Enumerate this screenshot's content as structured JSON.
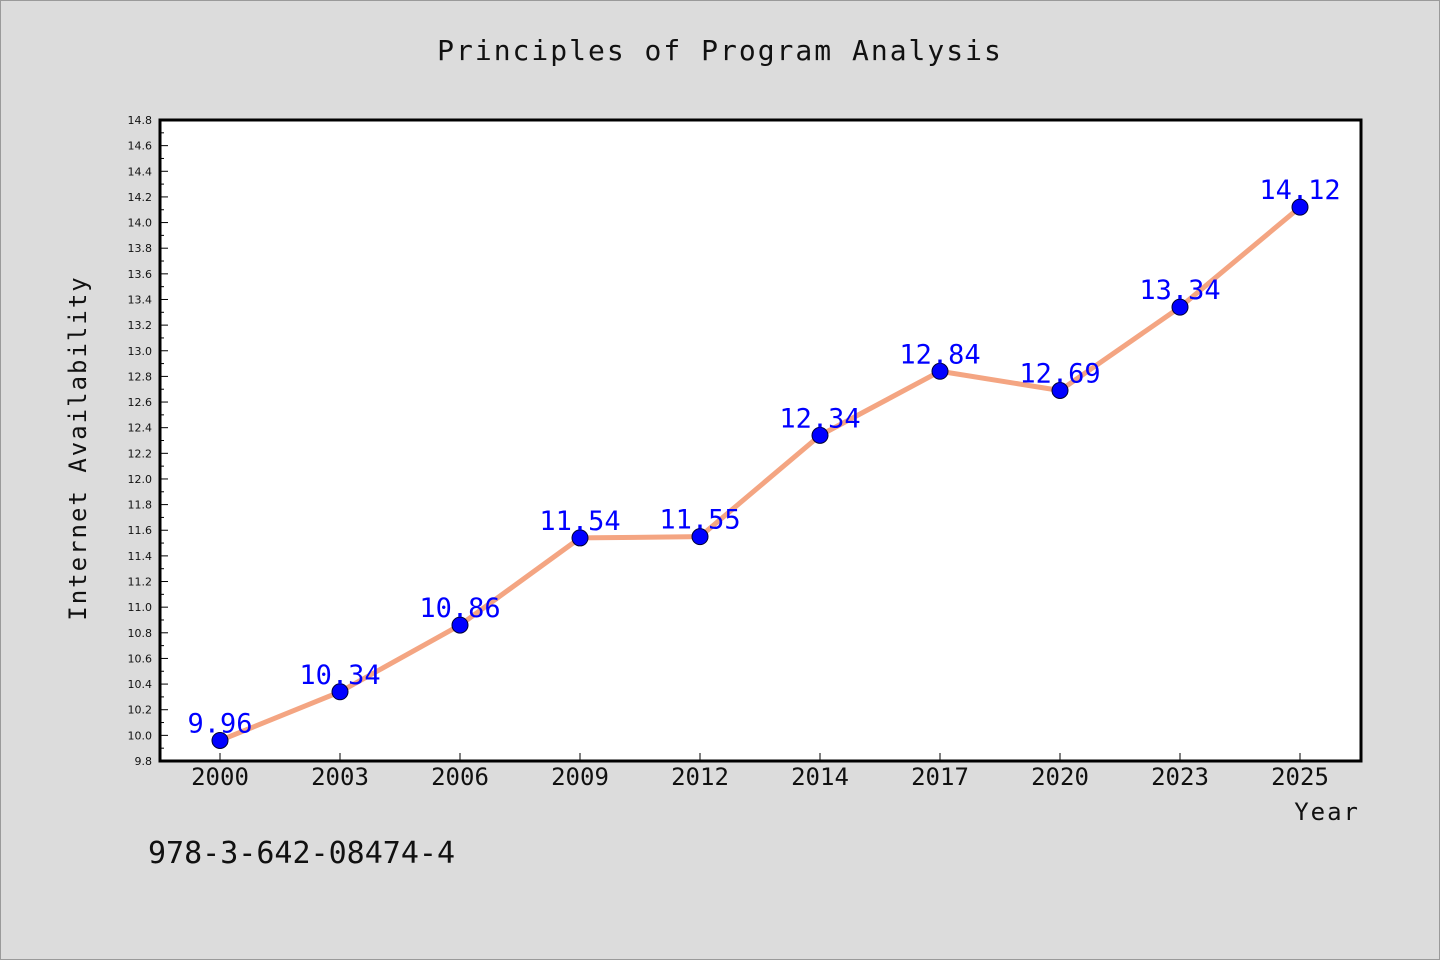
{
  "chart_data": {
    "type": "line",
    "title": "Principles of Program Analysis",
    "xlabel": "Year",
    "ylabel": "Internet Availability",
    "categories": [
      "2000",
      "2003",
      "2006",
      "2009",
      "2012",
      "2014",
      "2017",
      "2020",
      "2023",
      "2025"
    ],
    "series": [
      {
        "values": [
          9.96,
          10.34,
          10.86,
          11.54,
          11.55,
          12.34,
          12.84,
          12.69,
          13.34,
          14.12
        ],
        "line_color": "#f4a582",
        "marker_color": "#0000ff"
      }
    ],
    "data_labels": [
      "9.96",
      "10.34",
      "10.86",
      "11.54",
      "11.55",
      "12.34",
      "12.84",
      "12.69",
      "13.34",
      "14.12"
    ],
    "ylim": [
      9.8,
      14.8
    ],
    "yticks": [
      "9.8",
      "10.0",
      "10.2",
      "10.4",
      "10.6",
      "10.8",
      "11.0",
      "11.2",
      "11.4",
      "11.6",
      "11.8",
      "12.0",
      "12.2",
      "12.4",
      "12.6",
      "12.8",
      "13.0",
      "13.2",
      "13.4",
      "13.6",
      "13.8",
      "14.0",
      "14.2",
      "14.4",
      "14.6",
      "14.8"
    ],
    "grid": false,
    "legend": "none"
  },
  "footer": {
    "isbn": "978-3-642-08474-4"
  },
  "colors": {
    "background": "#dcdcdc",
    "plot_background": "#ffffff",
    "line": "#f4a582",
    "marker": "#0000ff",
    "data_label": "#0000ff"
  }
}
